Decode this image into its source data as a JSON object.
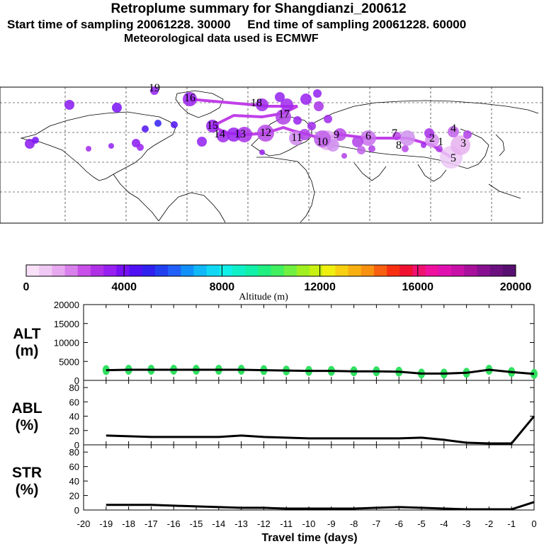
{
  "header": {
    "title": "Retroplume summary for Shangdianzi_200612",
    "start_label": "Start time of sampling 20061228. 30000",
    "end_label": "End time of sampling 20061228. 60000",
    "met_label": "Meteorological data used is ECMWF"
  },
  "colorbar": {
    "title": "Altitude (m)",
    "ticks": [
      "0",
      "4000",
      "8000",
      "12000",
      "16000",
      "20000"
    ],
    "colors": [
      "#f8e0f8",
      "#f0c8f4",
      "#e8a8f0",
      "#d880ec",
      "#c850e8",
      "#b030e8",
      "#9820f0",
      "#7810f4",
      "#5010f4",
      "#3020f0",
      "#2040f0",
      "#2060f8",
      "#1090f8",
      "#10b8f8",
      "#10d8f4",
      "#10f0e8",
      "#10f0c8",
      "#10f0a8",
      "#20f080",
      "#40f060",
      "#70f040",
      "#a0f020",
      "#c8f010",
      "#f0f010",
      "#f8d010",
      "#f8b010",
      "#f89010",
      "#f86010",
      "#f83010",
      "#f01030",
      "#f01070",
      "#f010a0",
      "#e010b0",
      "#c810a8",
      "#a8109c",
      "#881090",
      "#6c1080",
      "#581070"
    ]
  },
  "map": {
    "track_color": "#c040e8",
    "labels": [
      "1",
      "2",
      "3",
      "4",
      "5",
      "6",
      "7",
      "8",
      "9",
      "10",
      "11",
      "12",
      "13",
      "14",
      "15",
      "16",
      "17",
      "18",
      "19"
    ]
  },
  "chart_data": [
    {
      "type": "line",
      "panel": "ALT",
      "ylabel_line1": "ALT",
      "ylabel_line2": "(m)",
      "ylim": [
        0,
        20000
      ],
      "yticks": [
        "0",
        "5000",
        "10000",
        "15000",
        "20000"
      ],
      "x": [
        -19,
        -18,
        -17,
        -16,
        -15,
        -14,
        -13,
        -12,
        -11,
        -10,
        -9,
        -8,
        -7,
        -6,
        -5,
        -4,
        -3,
        -2,
        -1,
        0
      ],
      "values": [
        2700,
        2800,
        2800,
        2800,
        2800,
        2800,
        2800,
        2700,
        2600,
        2500,
        2500,
        2400,
        2400,
        2300,
        1800,
        1800,
        2000,
        2800,
        2200,
        1700
      ],
      "scatter_color": "#30e060"
    },
    {
      "type": "line",
      "panel": "ABL",
      "ylabel_line1": "ABL",
      "ylabel_line2": "(%)",
      "ylim": [
        0,
        90
      ],
      "yticks": [
        "0",
        "20",
        "40",
        "60",
        "80"
      ],
      "x": [
        -19,
        -18,
        -17,
        -16,
        -15,
        -14,
        -13,
        -12,
        -11,
        -10,
        -9,
        -8,
        -7,
        -6,
        -5,
        -4,
        -3,
        -2,
        -1,
        0
      ],
      "values": [
        13,
        12,
        11,
        11,
        11,
        11,
        13,
        11,
        10,
        9,
        9,
        9,
        9,
        9,
        10,
        7,
        3,
        2,
        2,
        40
      ]
    },
    {
      "type": "line",
      "panel": "STR",
      "ylabel_line1": "STR",
      "ylabel_line2": "(%)",
      "ylim": [
        0,
        90
      ],
      "yticks": [
        "0",
        "20",
        "40",
        "60",
        "80"
      ],
      "x": [
        -19,
        -18,
        -17,
        -16,
        -15,
        -14,
        -13,
        -12,
        -11,
        -10,
        -9,
        -8,
        -7,
        -6,
        -5,
        -4,
        -3,
        -2,
        -1,
        0
      ],
      "values": [
        7,
        7,
        7,
        6,
        5,
        4,
        3,
        3,
        2,
        2,
        2,
        2,
        3,
        4,
        3,
        2,
        1,
        1,
        1,
        11
      ]
    }
  ],
  "xaxis": {
    "label": "Travel time (days)",
    "ticks": [
      "-20",
      "-19",
      "-18",
      "-17",
      "-16",
      "-15",
      "-14",
      "-13",
      "-12",
      "-11",
      "-10",
      "-9",
      "-8",
      "-7",
      "-6",
      "-5",
      "-4",
      "-3",
      "-2",
      "-1",
      "0"
    ]
  }
}
